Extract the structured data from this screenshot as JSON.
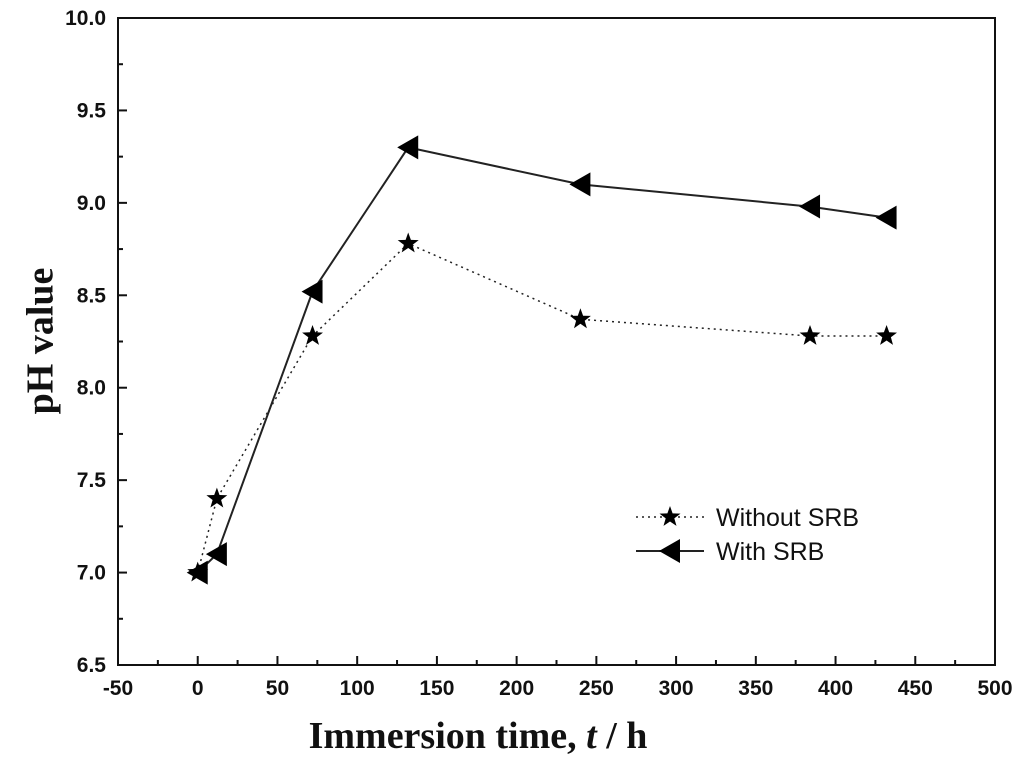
{
  "chart_data": {
    "type": "line",
    "title": "",
    "xlabel": "Immersion time, t / h",
    "xlabel_parts": {
      "main": "Immersion time, ",
      "var": "t",
      "unit": " / h"
    },
    "ylabel": "pH value",
    "xlim": [
      -50,
      500
    ],
    "ylim": [
      6.5,
      10.0
    ],
    "xticks": [
      -50,
      0,
      50,
      100,
      150,
      200,
      250,
      300,
      350,
      400,
      450,
      500
    ],
    "yticks": [
      6.5,
      7.0,
      7.5,
      8.0,
      8.5,
      9.0,
      9.5,
      10.0
    ],
    "grid": false,
    "legend_position": "center-right",
    "series": [
      {
        "name": "Without SRB",
        "legend_label": "Without SRB",
        "marker": "star",
        "line_style": "dotted",
        "x": [
          0,
          12,
          72,
          132,
          240,
          384,
          432
        ],
        "y": [
          7.0,
          7.4,
          8.28,
          8.78,
          8.37,
          8.28,
          8.28
        ]
      },
      {
        "name": "With SRB",
        "legend_label": "With      SRB",
        "marker": "left-triangle",
        "line_style": "solid",
        "x": [
          0,
          12,
          72,
          132,
          240,
          384,
          432
        ],
        "y": [
          7.0,
          7.1,
          8.52,
          9.3,
          9.1,
          8.98,
          8.92
        ]
      }
    ]
  }
}
